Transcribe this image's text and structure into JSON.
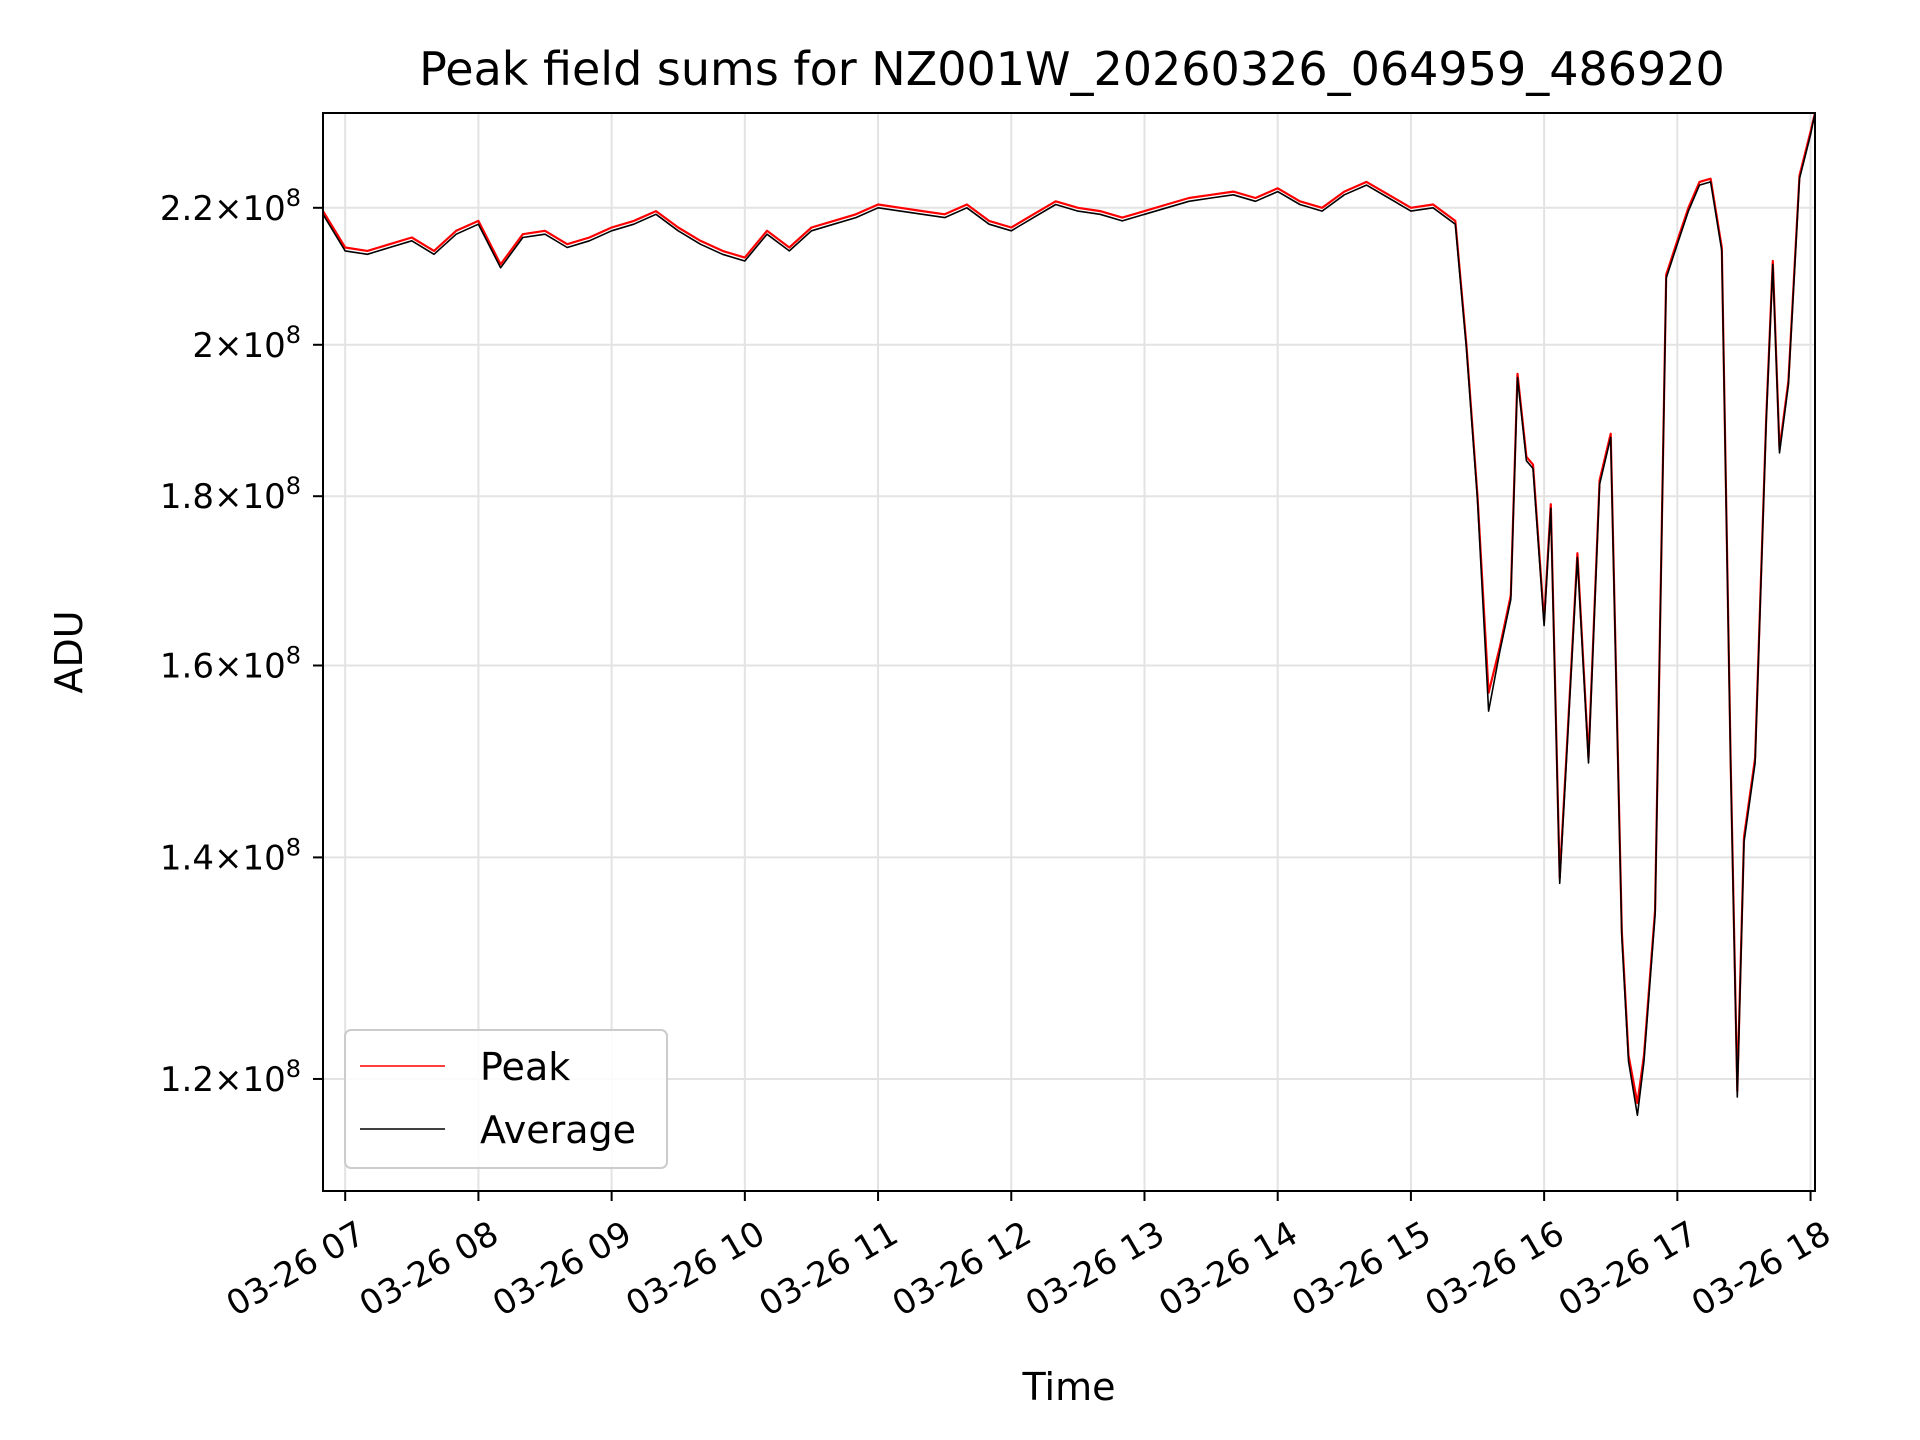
{
  "chart_data": {
    "type": "line",
    "title": "Peak field sums for NZ001W_20260326_064959_486920",
    "xlabel": "Time",
    "ylabel": "ADU",
    "yscale": "log",
    "ylim": [
      111000000,
      235000000
    ],
    "xlim": [
      "2026-03-26 06:50",
      "2026-03-26 18:02"
    ],
    "grid": true,
    "legend": "lower-left",
    "x_ticks": [
      {
        "value": "2026-03-26 07:00",
        "label": "03-26 07"
      },
      {
        "value": "2026-03-26 08:00",
        "label": "03-26 08"
      },
      {
        "value": "2026-03-26 09:00",
        "label": "03-26 09"
      },
      {
        "value": "2026-03-26 10:00",
        "label": "03-26 10"
      },
      {
        "value": "2026-03-26 11:00",
        "label": "03-26 11"
      },
      {
        "value": "2026-03-26 12:00",
        "label": "03-26 12"
      },
      {
        "value": "2026-03-26 13:00",
        "label": "03-26 13"
      },
      {
        "value": "2026-03-26 14:00",
        "label": "03-26 14"
      },
      {
        "value": "2026-03-26 15:00",
        "label": "03-26 15"
      },
      {
        "value": "2026-03-26 16:00",
        "label": "03-26 16"
      },
      {
        "value": "2026-03-26 17:00",
        "label": "03-26 17"
      },
      {
        "value": "2026-03-26 18:00",
        "label": "03-26 18"
      }
    ],
    "y_ticks": [
      {
        "value": 120000000,
        "mantissa": "1.2",
        "base": "10",
        "exponent": "8"
      },
      {
        "value": 140000000,
        "mantissa": "1.4",
        "base": "10",
        "exponent": "8"
      },
      {
        "value": 160000000,
        "mantissa": "1.6",
        "base": "10",
        "exponent": "8"
      },
      {
        "value": 180000000,
        "mantissa": "1.8",
        "base": "10",
        "exponent": "8"
      },
      {
        "value": 200000000,
        "mantissa": "2",
        "base": "10",
        "exponent": "8"
      },
      {
        "value": 220000000,
        "mantissa": "2.2",
        "base": "10",
        "exponent": "8"
      }
    ],
    "x": [
      "2026-03-26 06:50",
      "2026-03-26 07:00",
      "2026-03-26 07:10",
      "2026-03-26 07:20",
      "2026-03-26 07:30",
      "2026-03-26 07:40",
      "2026-03-26 07:50",
      "2026-03-26 08:00",
      "2026-03-26 08:10",
      "2026-03-26 08:20",
      "2026-03-26 08:30",
      "2026-03-26 08:40",
      "2026-03-26 08:50",
      "2026-03-26 09:00",
      "2026-03-26 09:10",
      "2026-03-26 09:20",
      "2026-03-26 09:30",
      "2026-03-26 09:40",
      "2026-03-26 09:50",
      "2026-03-26 10:00",
      "2026-03-26 10:10",
      "2026-03-26 10:20",
      "2026-03-26 10:30",
      "2026-03-26 10:40",
      "2026-03-26 10:50",
      "2026-03-26 11:00",
      "2026-03-26 11:10",
      "2026-03-26 11:20",
      "2026-03-26 11:30",
      "2026-03-26 11:40",
      "2026-03-26 11:50",
      "2026-03-26 12:00",
      "2026-03-26 12:10",
      "2026-03-26 12:20",
      "2026-03-26 12:30",
      "2026-03-26 12:40",
      "2026-03-26 12:50",
      "2026-03-26 13:00",
      "2026-03-26 13:10",
      "2026-03-26 13:20",
      "2026-03-26 13:30",
      "2026-03-26 13:40",
      "2026-03-26 13:50",
      "2026-03-26 14:00",
      "2026-03-26 14:10",
      "2026-03-26 14:20",
      "2026-03-26 14:30",
      "2026-03-26 14:40",
      "2026-03-26 14:50",
      "2026-03-26 15:00",
      "2026-03-26 15:10",
      "2026-03-26 15:20",
      "2026-03-26 15:25",
      "2026-03-26 15:30",
      "2026-03-26 15:35",
      "2026-03-26 15:40",
      "2026-03-26 15:45",
      "2026-03-26 15:48",
      "2026-03-26 15:52",
      "2026-03-26 15:55",
      "2026-03-26 16:00",
      "2026-03-26 16:03",
      "2026-03-26 16:07",
      "2026-03-26 16:10",
      "2026-03-26 16:15",
      "2026-03-26 16:20",
      "2026-03-26 16:25",
      "2026-03-26 16:30",
      "2026-03-26 16:35",
      "2026-03-26 16:38",
      "2026-03-26 16:42",
      "2026-03-26 16:45",
      "2026-03-26 16:50",
      "2026-03-26 16:55",
      "2026-03-26 17:00",
      "2026-03-26 17:05",
      "2026-03-26 17:10",
      "2026-03-26 17:15",
      "2026-03-26 17:20",
      "2026-03-26 17:24",
      "2026-03-26 17:27",
      "2026-03-26 17:30",
      "2026-03-26 17:35",
      "2026-03-26 17:40",
      "2026-03-26 17:43",
      "2026-03-26 17:46",
      "2026-03-26 17:50",
      "2026-03-26 17:55",
      "2026-03-26 18:00",
      "2026-03-26 18:02"
    ],
    "series": [
      {
        "name": "Peak",
        "color": "#ff0000",
        "values": [
          219500000,
          214000000,
          213500000,
          214500000,
          215500000,
          213500000,
          216500000,
          218000000,
          211500000,
          216000000,
          216500000,
          214500000,
          215500000,
          217000000,
          218000000,
          219500000,
          217000000,
          215000000,
          213500000,
          212500000,
          216500000,
          214000000,
          217000000,
          218000000,
          219000000,
          220500000,
          220000000,
          219500000,
          219000000,
          220500000,
          218000000,
          217000000,
          219000000,
          221000000,
          220000000,
          219500000,
          218500000,
          219500000,
          220500000,
          221500000,
          222000000,
          222500000,
          221500000,
          223000000,
          221000000,
          220000000,
          222500000,
          224000000,
          222000000,
          220000000,
          220500000,
          218000000,
          200000000,
          180000000,
          157000000,
          162000000,
          168000000,
          196000000,
          185000000,
          184000000,
          165000000,
          179000000,
          138000000,
          150000000,
          173000000,
          150000000,
          182000000,
          188000000,
          133000000,
          122000000,
          118000000,
          122000000,
          135000000,
          210000000,
          215000000,
          220000000,
          224000000,
          224500000,
          214000000,
          150000000,
          119000000,
          142000000,
          150000000,
          190000000,
          212000000,
          186000000,
          195000000,
          225000000,
          232000000,
          235000000
        ]
      },
      {
        "name": "Average",
        "color": "#000000",
        "values": [
          219000000,
          213500000,
          213000000,
          214000000,
          215000000,
          213000000,
          216000000,
          217500000,
          211000000,
          215500000,
          216000000,
          214000000,
          215000000,
          216500000,
          217500000,
          219000000,
          216500000,
          214500000,
          213000000,
          212000000,
          216000000,
          213500000,
          216500000,
          217500000,
          218500000,
          220000000,
          219500000,
          219000000,
          218500000,
          220000000,
          217500000,
          216500000,
          218500000,
          220500000,
          219500000,
          219000000,
          218000000,
          219000000,
          220000000,
          221000000,
          221500000,
          222000000,
          221000000,
          222500000,
          220500000,
          219500000,
          222000000,
          223500000,
          221500000,
          219500000,
          220000000,
          217500000,
          199500000,
          179500000,
          155000000,
          161500000,
          167500000,
          195500000,
          184500000,
          183500000,
          164500000,
          178500000,
          137500000,
          149500000,
          172500000,
          149500000,
          181500000,
          187500000,
          132500000,
          121500000,
          117000000,
          121500000,
          134500000,
          209500000,
          214500000,
          219500000,
          223500000,
          224000000,
          213500000,
          149500000,
          118500000,
          141500000,
          149500000,
          189500000,
          211500000,
          185500000,
          194500000,
          224500000,
          231500000,
          235000000
        ]
      }
    ]
  }
}
